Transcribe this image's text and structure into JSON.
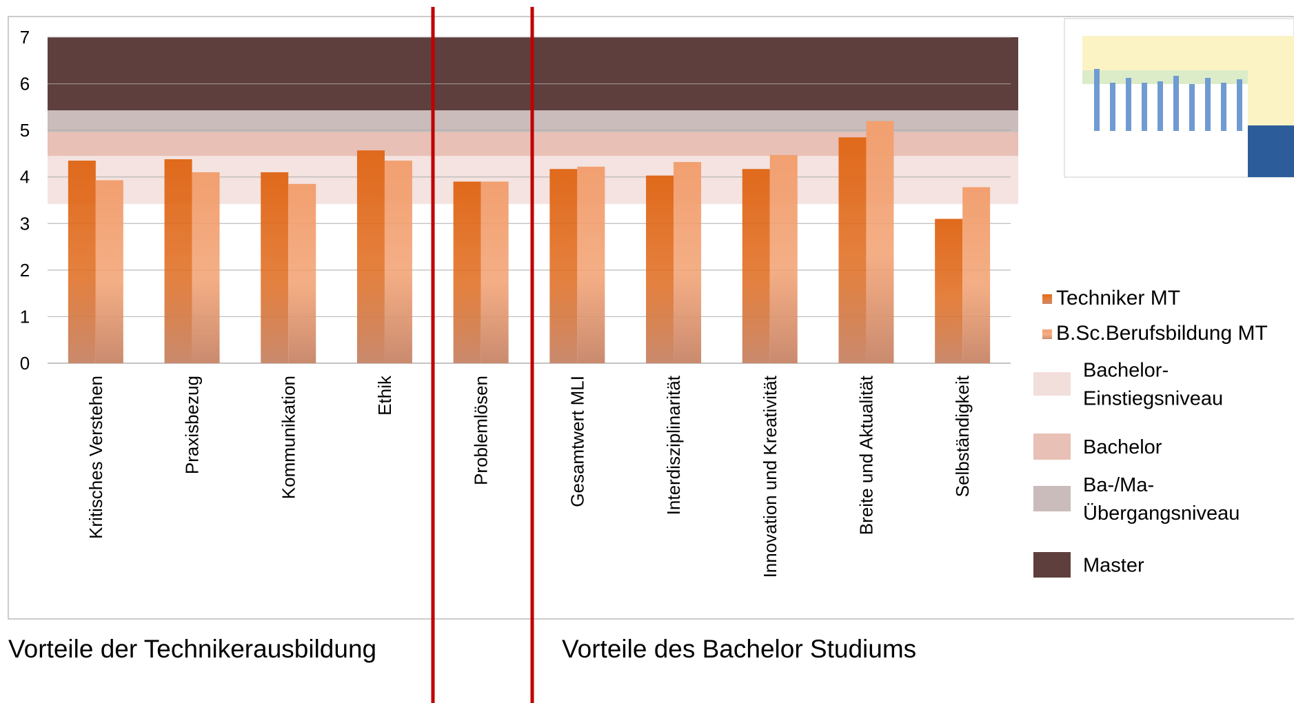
{
  "chart_data": {
    "type": "bar",
    "categories": [
      "Kritisches Verstehen",
      "Praxisbezug",
      "Kommunikation",
      "Ethik",
      "Problemlösen",
      "Gesamtwert MLI",
      "Interdisziplinarität",
      "Innovation und Kreativität",
      "Breite und Aktualität",
      "Selbständigkeit"
    ],
    "series": [
      {
        "name": "Techniker MT",
        "color": "#e06a1c",
        "values": [
          4.35,
          4.38,
          4.1,
          4.57,
          3.9,
          4.17,
          4.03,
          4.17,
          4.85,
          3.1
        ]
      },
      {
        "name": "B.Sc.Berufsbildung MT",
        "color": "#f2a070",
        "values": [
          3.93,
          4.1,
          3.85,
          4.35,
          3.9,
          4.22,
          4.32,
          4.47,
          5.2,
          3.78
        ]
      }
    ],
    "bands": [
      {
        "name": [
          "Bachelor-",
          "Einstiegsniveau"
        ],
        "color": "#f2dedb",
        "from": 3.42,
        "to": 4.45
      },
      {
        "name": [
          "Bachelor"
        ],
        "color": "#e8c0b6",
        "from": 4.45,
        "to": 4.96
      },
      {
        "name": [
          "Ba-/Ma-",
          "Übergangsniveau"
        ],
        "color": "#c9bcbb",
        "from": 4.96,
        "to": 5.43
      },
      {
        "name": [
          "Master"
        ],
        "color": "#5e3f3d",
        "from": 5.43,
        "to": 7
      }
    ],
    "ylim": [
      0,
      7
    ],
    "yticks": [
      0,
      1,
      2,
      3,
      4,
      5,
      6,
      7
    ],
    "grid": true,
    "legend": "right",
    "annotations": [
      "Vorteile der Technikerausbildung",
      "Vorteile des Bachelor Studiums"
    ]
  }
}
